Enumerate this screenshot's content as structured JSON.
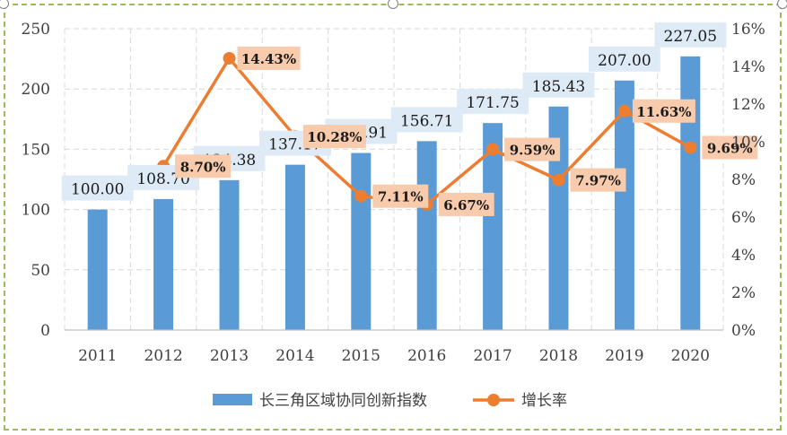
{
  "chart_data": {
    "type": "bar",
    "categories": [
      "2011",
      "2012",
      "2013",
      "2014",
      "2015",
      "2016",
      "2017",
      "2018",
      "2019",
      "2020"
    ],
    "series": [
      {
        "name": "长三角区域协同创新指数",
        "type": "bar",
        "axis": "left",
        "values": [
          100.0,
          108.7,
          124.38,
          137.17,
          146.91,
          156.71,
          171.75,
          185.43,
          207.0,
          227.05
        ],
        "labels": [
          "100.00",
          "108.70",
          "124.38",
          "137.17",
          "146.91",
          "156.71",
          "171.75",
          "185.43",
          "207.00",
          "227.05"
        ]
      },
      {
        "name": "增长率",
        "type": "line",
        "axis": "right",
        "values": [
          null,
          8.7,
          14.43,
          10.28,
          7.11,
          6.67,
          9.59,
          7.97,
          11.63,
          9.69
        ],
        "labels": [
          null,
          "8.70%",
          "14.43%",
          "10.28%",
          "7.11%",
          "6.67%",
          "9.59%",
          "7.97%",
          "11.63%",
          "9.69%"
        ]
      }
    ],
    "y_left": {
      "min": 0,
      "max": 250,
      "ticks": [
        "0",
        "50",
        "100",
        "150",
        "200",
        "250"
      ]
    },
    "y_right": {
      "min": 0,
      "max": 16,
      "ticks": [
        "0%",
        "2%",
        "4%",
        "6%",
        "8%",
        "10%",
        "12%",
        "14%",
        "16%"
      ]
    },
    "grid": true,
    "legend_position": "bottom",
    "colors": {
      "bar": "#5b9bd5",
      "line": "#ed7d31",
      "bar_label_bg": "#deebf7",
      "line_label_bg": "#f8cbad",
      "grid": "#d9d9d9",
      "axis": "#bfbfbf",
      "frame": "#9bbb59"
    }
  }
}
